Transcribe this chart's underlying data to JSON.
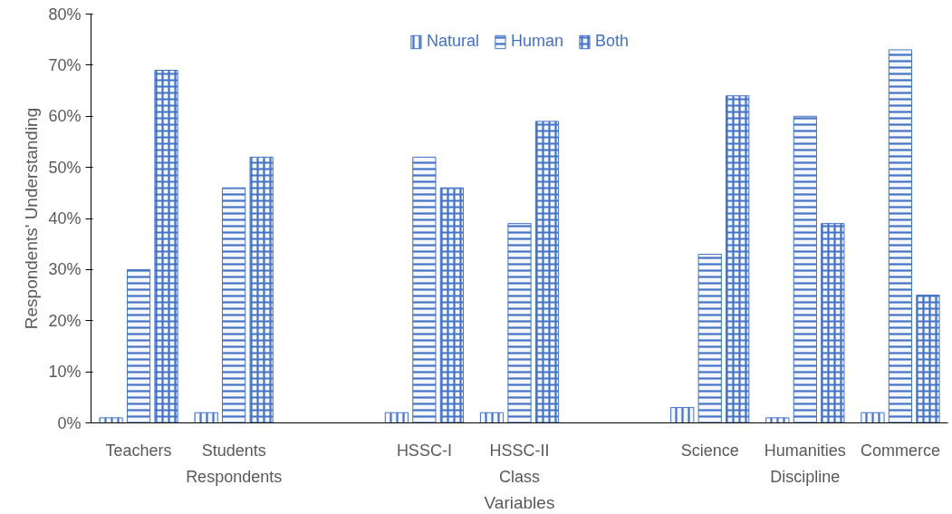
{
  "chart_data": {
    "type": "bar",
    "categories": [
      "Teachers",
      "Students",
      null,
      "HSSC-I",
      "HSSC-II",
      null,
      "Science",
      "Humanities",
      "Commerce"
    ],
    "series": [
      {
        "name": "Natural",
        "color": "#4472c4",
        "values": [
          1,
          2,
          null,
          2,
          2,
          null,
          3,
          1,
          2
        ]
      },
      {
        "name": "Human",
        "color": "#4472c4",
        "values": [
          30,
          46,
          null,
          52,
          39,
          null,
          33,
          60,
          73
        ]
      },
      {
        "name": "Both",
        "color": "#4472c4",
        "values": [
          69,
          52,
          null,
          46,
          59,
          null,
          64,
          39,
          25
        ]
      }
    ],
    "xlabel": "Variables",
    "ylabel": "Respondents' Understanding",
    "annotations": [
      "Respondents",
      "Class",
      "Discipline"
    ],
    "ylim": [
      0,
      80
    ],
    "yticks": [
      {
        "value": 0,
        "label": "0%"
      },
      {
        "value": 10,
        "label": "10%"
      },
      {
        "value": 20,
        "label": "20%"
      },
      {
        "value": 30,
        "label": "30%"
      },
      {
        "value": 40,
        "label": "40%"
      },
      {
        "value": 50,
        "label": "50%"
      },
      {
        "value": 60,
        "label": "60%"
      },
      {
        "value": 70,
        "label": "70%"
      },
      {
        "value": 80,
        "label": "80%"
      }
    ],
    "grid": false,
    "legend": "top"
  }
}
